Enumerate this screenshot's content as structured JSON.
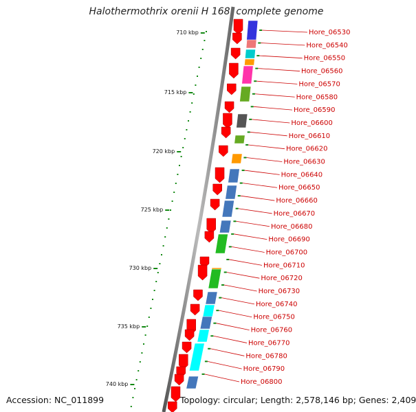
{
  "title": "Halothermothrix orenii H 168, complete genome",
  "footer": {
    "accession": "Accession: NC_011899",
    "summary": "Topology: circular; Length: 2,578,146 bp; Genes: 2,409"
  },
  "scale_ticks": [
    "710 kbp",
    "715 kbp",
    "720 kbp",
    "725 kbp",
    "730 kbp",
    "735 kbp",
    "740 kbp"
  ],
  "gene_labels": [
    "Hore_06530",
    "Hore_06540",
    "Hore_06550",
    "Hore_06560",
    "Hore_06570",
    "Hore_06580",
    "Hore_06590",
    "Hore_06600",
    "Hore_06610",
    "Hore_06620",
    "Hore_06630",
    "Hore_06640",
    "Hore_06650",
    "Hore_06660",
    "Hore_06670",
    "Hore_06680",
    "Hore_06690",
    "Hore_06700",
    "Hore_06710",
    "Hore_06720",
    "Hore_06730",
    "Hore_06740",
    "Hore_06750",
    "Hore_06760",
    "Hore_06770",
    "Hore_06780",
    "Hore_06790",
    "Hore_06800"
  ],
  "colors": {
    "cds_arrow": "#ff0000",
    "label_text": "#cc0000",
    "backbone": "#777777",
    "tick": "#118811",
    "feature_palette": [
      "#3333dd",
      "#ee7777",
      "#00cccc",
      "#ff9900",
      "#ff33aa",
      "#66aa22",
      "#555555",
      "#4477bb",
      "#00ffff",
      "#22bb22",
      "#aaaaaa"
    ]
  }
}
